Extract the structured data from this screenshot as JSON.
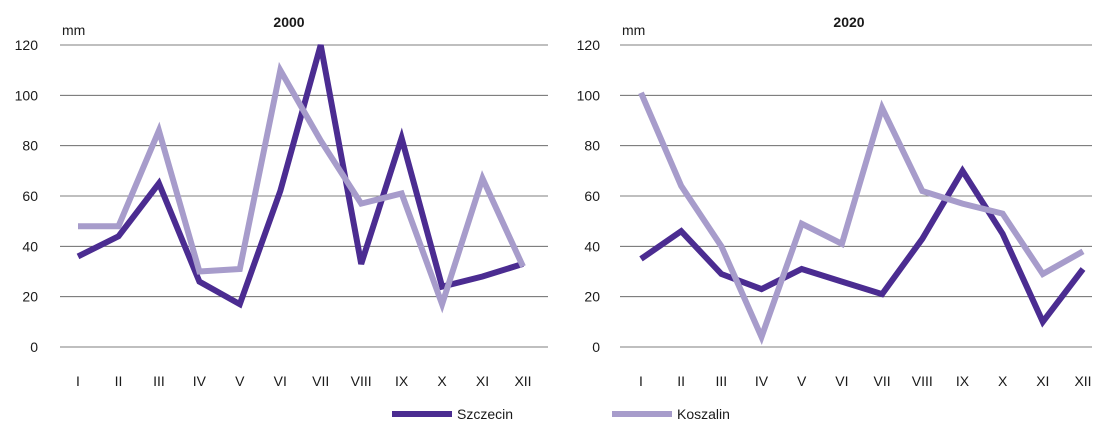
{
  "chart_data": [
    {
      "type": "line",
      "title": "2000",
      "ylabel": "mm",
      "categories": [
        "I",
        "II",
        "III",
        "IV",
        "V",
        "VI",
        "VII",
        "VIII",
        "IX",
        "X",
        "XI",
        "XII"
      ],
      "ylim": [
        0,
        120
      ],
      "yticks": [
        "0",
        "20",
        "40",
        "60",
        "80",
        "100",
        "120"
      ],
      "grid": true,
      "series": [
        {
          "name": "Szczecin",
          "color": "#4b2c91",
          "values": [
            36,
            44,
            65,
            26,
            17,
            62,
            120,
            33,
            83,
            24,
            28,
            33
          ]
        },
        {
          "name": "Koszalin",
          "color": "#a79ccb",
          "values": [
            48,
            48,
            86,
            30,
            31,
            110,
            82,
            57,
            61,
            17,
            67,
            32
          ]
        }
      ]
    },
    {
      "type": "line",
      "title": "2020",
      "ylabel": "mm",
      "categories": [
        "I",
        "II",
        "III",
        "IV",
        "V",
        "VI",
        "VII",
        "VIII",
        "IX",
        "X",
        "XI",
        "XII"
      ],
      "ylim": [
        0,
        120
      ],
      "yticks": [
        "0",
        "20",
        "40",
        "60",
        "80",
        "100",
        "120"
      ],
      "grid": true,
      "series": [
        {
          "name": "Szczecin",
          "color": "#4b2c91",
          "values": [
            35,
            46,
            29,
            23,
            31,
            26,
            21,
            43,
            70,
            45,
            10,
            31
          ]
        },
        {
          "name": "Koszalin",
          "color": "#a79ccb",
          "values": [
            101,
            64,
            40,
            4,
            49,
            41,
            95,
            62,
            57,
            53,
            29,
            38
          ]
        }
      ]
    }
  ],
  "legend": {
    "position": "bottom",
    "items": [
      {
        "label": "Szczecin",
        "color": "#4b2c91"
      },
      {
        "label": "Koszalin",
        "color": "#a79ccb"
      }
    ]
  }
}
